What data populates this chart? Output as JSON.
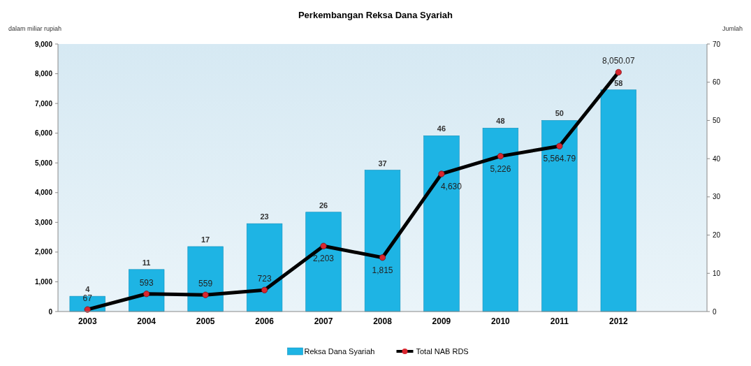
{
  "chart_data": {
    "type": "bar",
    "title": "Perkembangan Reksa Dana Syariah",
    "ylabel": "dalam miliar rupiah",
    "y2label": "Jumlah",
    "categories": [
      "2003",
      "2004",
      "2005",
      "2006",
      "2007",
      "2008",
      "2009",
      "2010",
      "2011",
      "2012",
      null
    ],
    "series": [
      {
        "name": "Reksa Dana Syariah",
        "axis": "y2",
        "color": "#1eb4e4",
        "values": [
          4,
          11,
          17,
          23,
          26,
          37,
          46,
          48,
          50,
          58,
          0
        ],
        "value_labels": [
          "4",
          "11",
          "17",
          "23",
          "26",
          "37",
          "46",
          "48",
          "50",
          "58",
          null
        ]
      },
      {
        "name": "Total NAB RDS",
        "type": "line",
        "color": "#000000",
        "marker": "circle",
        "values": [
          67,
          593,
          559,
          723,
          2203,
          1815,
          4630,
          5226,
          5564.79,
          8050.07,
          null
        ],
        "value_labels": [
          "67",
          "593",
          "559",
          "723",
          "2,203",
          "1,815",
          "4,630",
          "5,226",
          "5,564.79",
          "8,050.07",
          null
        ]
      }
    ],
    "ylim": [
      0,
      9000
    ],
    "yticks": [
      {
        "value": 0,
        "label": "0"
      },
      {
        "value": 1000,
        "label": "1,000"
      },
      {
        "value": 2000,
        "label": "2,000"
      },
      {
        "value": 3000,
        "label": "3,000"
      },
      {
        "value": 4000,
        "label": "4,000"
      },
      {
        "value": 5000,
        "label": "5,000"
      },
      {
        "value": 6000,
        "label": "6,000"
      },
      {
        "value": 7000,
        "label": "7,000"
      },
      {
        "value": 8000,
        "label": "8,000"
      },
      {
        "value": 9000,
        "label": "9,000"
      }
    ],
    "y2lim": [
      0,
      70
    ],
    "y2ticks": [
      0,
      10,
      20,
      30,
      40,
      50,
      60,
      70
    ],
    "legend": "bottom",
    "grid": false
  }
}
